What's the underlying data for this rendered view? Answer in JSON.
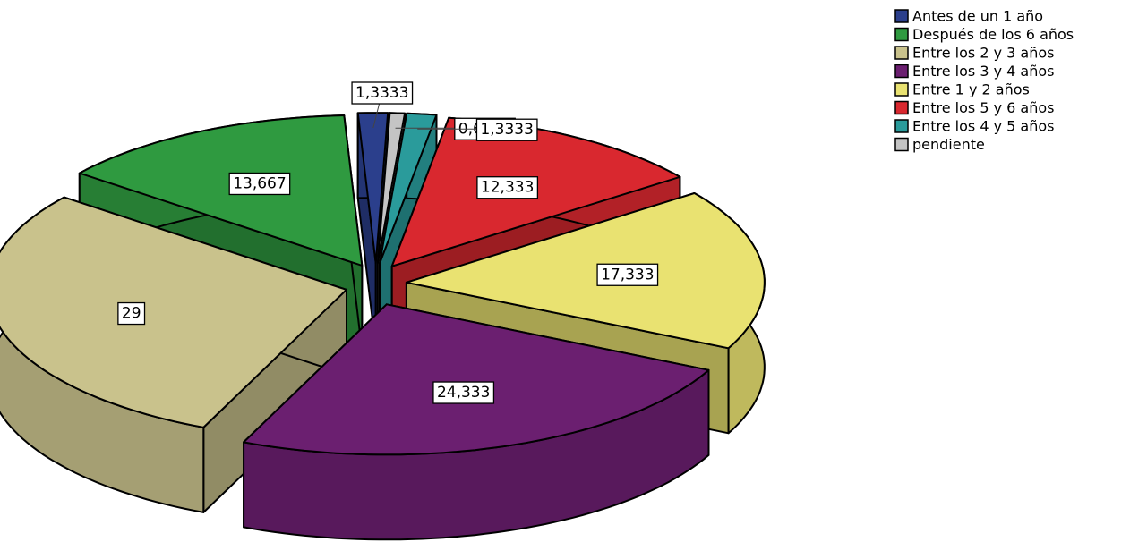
{
  "chart_data": {
    "type": "pie3d",
    "categories": [
      "Antes de un 1 año",
      "Después de los 6 años",
      "Entre  los  2 y 3 años",
      "Entre  los  3 y 4 años",
      "Entre 1  y 2 años",
      "Entre los  5 y 6 años",
      "Entre los 4 y 5 años",
      "pendiente"
    ],
    "values": [
      1.3333,
      13.667,
      29,
      24.333,
      17.333,
      12.333,
      1.3333,
      0.6667
    ],
    "value_labels": [
      "1,3333",
      "13,667",
      "29",
      "24,333",
      "17,333",
      "12,333",
      "1,3333",
      "0,6667"
    ],
    "colors": [
      "#2b3f8c",
      "#2f9a40",
      "#c9c28c",
      "#6b1f70",
      "#e9e271",
      "#d9282f",
      "#2a9b9b",
      "#c4c4c4"
    ],
    "legend": "top-right"
  }
}
